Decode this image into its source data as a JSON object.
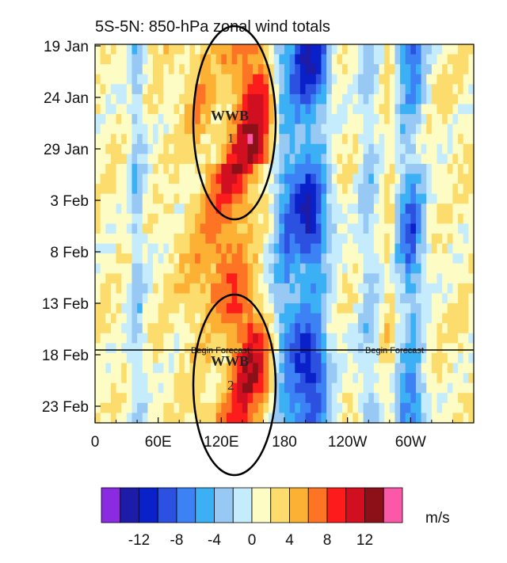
{
  "chart_data": {
    "type": "heatmap",
    "title": "5S-5N: 850-hPa zonal wind totals",
    "units": "m/s",
    "x_ticks": [
      "0",
      "60E",
      "120E",
      "180",
      "120W",
      "60W"
    ],
    "y_ticks": [
      "19 Jan",
      "24 Jan",
      "29 Jan",
      "3 Feb",
      "8 Feb",
      "13 Feb",
      "18 Feb",
      "23 Feb"
    ],
    "x_range": [
      "0",
      "360"
    ],
    "y_range": [
      "18 Jan",
      "25 Feb"
    ],
    "colorbar": {
      "ticks": [
        "-12",
        "-8",
        "-4",
        "0",
        "4",
        "8",
        "12"
      ],
      "levels": [
        -16,
        -14,
        -12,
        -10,
        -8,
        -6,
        -4,
        -2,
        0,
        2,
        4,
        6,
        8,
        10,
        12,
        14,
        16
      ],
      "colors": [
        "#8a2be2",
        "#1c1ca8",
        "#0a20c8",
        "#2c50e0",
        "#3c82f4",
        "#3cb0f4",
        "#98c8f4",
        "#c4ecfc",
        "#fcfcc4",
        "#fcdc6c",
        "#fcb034",
        "#fc7424",
        "#fc1c1c",
        "#d01020",
        "#8c1018",
        "#fc58a8"
      ]
    },
    "annotations": [
      {
        "label": "WWB",
        "number": "1"
      },
      {
        "label": "WWB",
        "number": "2"
      }
    ],
    "forecast_line": {
      "date": "18 Feb",
      "label_left": "Begin Forecast",
      "label_right": "Begin Forecast"
    }
  }
}
